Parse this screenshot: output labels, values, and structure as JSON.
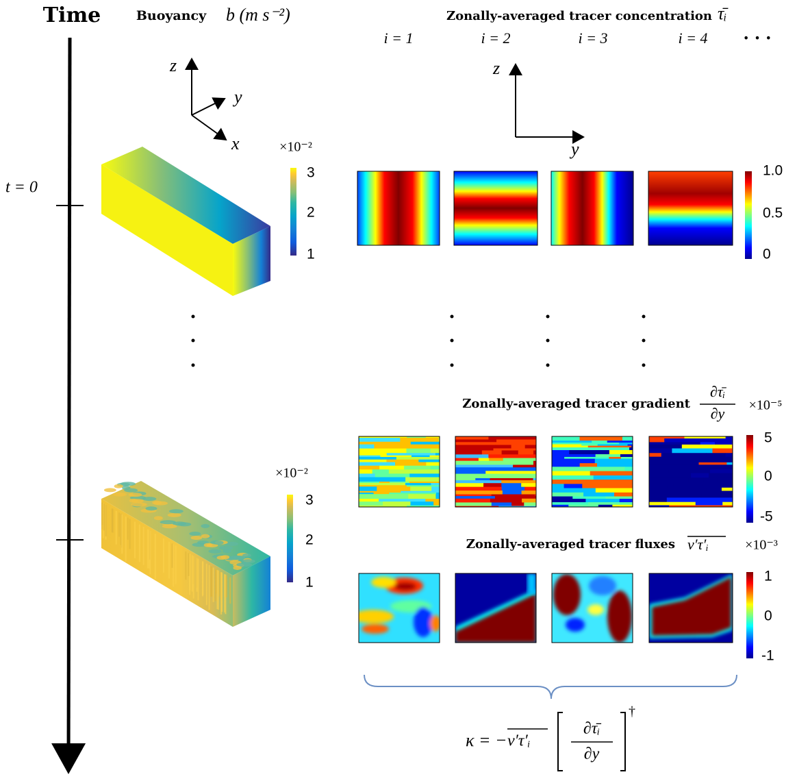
{
  "header": {
    "time_label": "Time",
    "buoyancy_label": "Buoyancy",
    "buoyancy_symbol": "b (m s⁻²)",
    "concentration_title": "Zonally-averaged tracer concentration",
    "concentration_symbol": "τ̄ᵢ",
    "tracer_indices": [
      "i = 1",
      "i = 2",
      "i = 3",
      "i = 4"
    ],
    "ellipsis": "· · ·"
  },
  "axes_3d": {
    "z": "z",
    "y": "y",
    "x": "x"
  },
  "axes_2d": {
    "z": "z",
    "y": "y"
  },
  "time_marker": "t = 0",
  "buoyancy_colorbars": [
    {
      "multiplier": "×10⁻²",
      "ticks": [
        "3",
        "2",
        "1"
      ]
    },
    {
      "multiplier": "×10⁻²",
      "ticks": [
        "3",
        "2",
        "1"
      ]
    }
  ],
  "concentration_colorbar": {
    "ticks": [
      "1.0",
      "0.5",
      "0"
    ]
  },
  "gradient": {
    "title": "Zonally-averaged tracer gradient",
    "numerator": "∂τ̄ᵢ",
    "denominator": "∂y",
    "multiplier": "×10⁻⁵",
    "ticks": [
      "5",
      "0",
      "-5"
    ]
  },
  "flux": {
    "title": "Zonally-averaged tracer fluxes",
    "symbol": "v′τ′ᵢ",
    "multiplier": "×10⁻³",
    "ticks": [
      "1",
      "0",
      "-1"
    ]
  },
  "formula": {
    "lhs": "κ = −",
    "flux": "v′τ′ᵢ",
    "numerator": "∂τ̄ᵢ",
    "denominator": "∂y",
    "superscript": "†"
  }
}
